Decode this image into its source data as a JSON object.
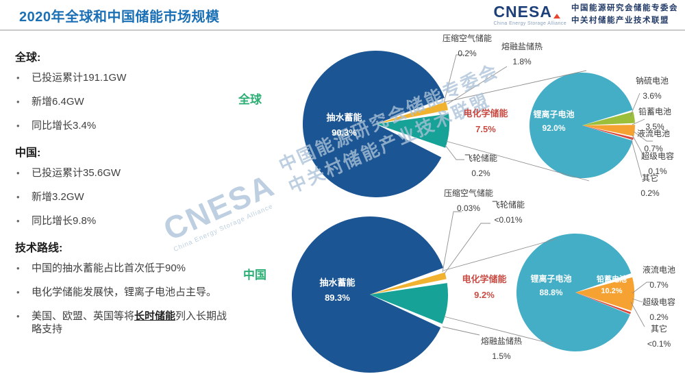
{
  "page": {
    "title": "2020年全球和中国储能市场规模"
  },
  "logo": {
    "brand": "CNESA",
    "tagline": "China Energy Storage Alliance",
    "org_line1": "中国能源研究会储能专委会",
    "org_line2": "中关村储能产业技术联盟"
  },
  "watermark": {
    "brand": "CNESA",
    "tagline": "China Energy Storage Alliance",
    "line1": "中国能源研究会储能专委会",
    "line2": "中关村储能产业技术联盟"
  },
  "sidebar": {
    "sections": [
      {
        "heading": "全球:",
        "items": [
          "已投运累计191.1GW",
          "新增6.4GW",
          "同比增长3.4%"
        ]
      },
      {
        "heading": "中国:",
        "items": [
          "已投运累计35.6GW",
          "新增3.2GW",
          "同比增长9.8%"
        ]
      },
      {
        "heading": "技术路线:",
        "items": [
          "中国的抽水蓄能占比首次低于90%",
          "电化学储能发展快，锂离子电池占主导。"
        ],
        "last_item": {
          "prefix": "美国、欧盟、英国等将",
          "emph": "长时储能",
          "suffix": "列入长期战略支持"
        }
      }
    ]
  },
  "chart_data": [
    {
      "type": "pie",
      "variant": "pie-of-pie",
      "region": "全球",
      "main_pie": {
        "center_label": {
          "name": "抽水蓄能",
          "value": "90.3%"
        },
        "slices": [
          {
            "name": "抽水蓄能",
            "pct": 90.3
          },
          {
            "name": "电化学储能",
            "pct": 7.5
          },
          {
            "name": "熔融盐储热",
            "pct": 1.8
          },
          {
            "name": "压缩空气储能",
            "pct": 0.2
          },
          {
            "name": "飞轮储能",
            "pct": 0.2
          }
        ]
      },
      "electro_label": {
        "name": "电化学储能",
        "value": "7.5%"
      },
      "detail_pie": {
        "parent": "电化学储能",
        "center_label": {
          "name": "锂离子电池",
          "value": "92.0%"
        },
        "slices": [
          {
            "name": "锂离子电池",
            "pct": 92.0
          },
          {
            "name": "钠硫电池",
            "pct": 3.6
          },
          {
            "name": "铅蓄电池",
            "pct": 3.5
          },
          {
            "name": "液流电池",
            "pct": 0.7
          },
          {
            "name": "超级电容",
            "pct": 0.1
          },
          {
            "name": "其它",
            "pct": 0.2
          }
        ]
      },
      "callouts": {
        "comp_air": {
          "name": "压缩空气储能",
          "value": "0.2%"
        },
        "molten": {
          "name": "熔融盐储热",
          "value": "1.8%"
        },
        "flywheel": {
          "name": "飞轮储能",
          "value": "0.2%"
        },
        "na_s": {
          "name": "钠硫电池",
          "value": "3.6%"
        },
        "lead": {
          "name": "铅蓄电池",
          "value": "3.5%"
        },
        "flow": {
          "name": "液流电池",
          "value": "0.7%"
        },
        "capacitor": {
          "name": "超级电容",
          "value": "0.1%"
        },
        "other": {
          "name": "其它",
          "value": "0.2%"
        }
      }
    },
    {
      "type": "pie",
      "variant": "pie-of-pie",
      "region": "中国",
      "main_pie": {
        "center_label": {
          "name": "抽水蓄能",
          "value": "89.3%"
        },
        "slices": [
          {
            "name": "抽水蓄能",
            "pct": 89.3
          },
          {
            "name": "电化学储能",
            "pct": 9.2
          },
          {
            "name": "熔融盐储热",
            "pct": 1.5
          },
          {
            "name": "压缩空气储能",
            "pct": 0.03
          },
          {
            "name": "飞轮储能",
            "pct": "<0.01"
          }
        ]
      },
      "electro_label": {
        "name": "电化学储能",
        "value": "9.2%"
      },
      "detail_pie": {
        "parent": "电化学储能",
        "center_label": {
          "name": "锂离子电池",
          "value": "88.8%"
        },
        "lead_inside": {
          "name": "铅蓄电池",
          "value": "10.2%"
        },
        "slices": [
          {
            "name": "锂离子电池",
            "pct": 88.8
          },
          {
            "name": "铅蓄电池",
            "pct": 10.2
          },
          {
            "name": "液流电池",
            "pct": 0.7
          },
          {
            "name": "超级电容",
            "pct": 0.2
          },
          {
            "name": "其它",
            "pct": "<0.1"
          }
        ]
      },
      "callouts": {
        "comp_air": {
          "name": "压缩空气储能",
          "value": "0.03%"
        },
        "flywheel": {
          "name": "飞轮储能",
          "value": "<0.01%"
        },
        "molten": {
          "name": "熔融盐储热",
          "value": "1.5%"
        },
        "flow": {
          "name": "液流电池",
          "value": "0.7%"
        },
        "capacitor": {
          "name": "超级电容",
          "value": "0.2%"
        },
        "other": {
          "name": "其它",
          "value": "<0.1%"
        }
      }
    }
  ],
  "colors": {
    "title_blue": "#1a6fb5",
    "brand_navy": "#1d3f7a",
    "brand_red": "#e8442e",
    "region_green": "#2bae74",
    "red_label": "#c84b43",
    "main_blue": "#1c5593",
    "teal": "#16a296",
    "gold": "#f0b22f",
    "cyan": "#43aec6",
    "olive": "#9cbf3b",
    "orange": "#f6a233",
    "sliver_red": "#d9483b",
    "line_gray": "#8f8f8f"
  }
}
